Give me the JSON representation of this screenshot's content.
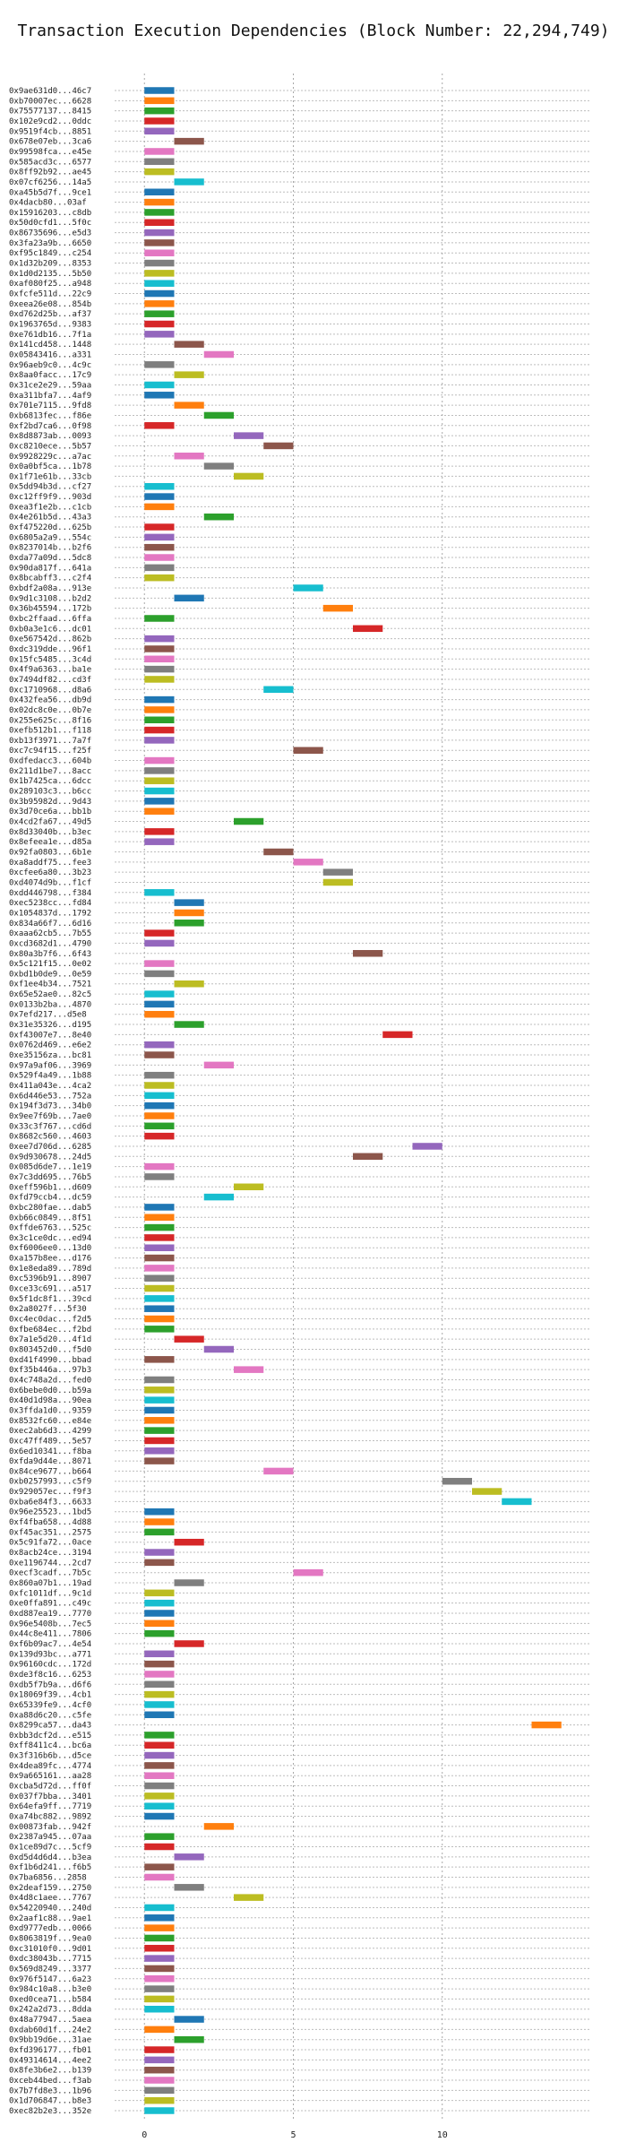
{
  "chart_data": {
    "type": "bar",
    "title": "Transaction Execution Dependencies (Block Number: 22,294,749)",
    "xlabel": "",
    "ylabel": "",
    "xlim": [
      -1,
      15
    ],
    "x_ticks": [
      0,
      5,
      10
    ],
    "grid": true,
    "bar_length": 1,
    "palette": [
      "#1f77b4",
      "#ff7f0e",
      "#2ca02c",
      "#d62728",
      "#9467bd",
      "#8c564b",
      "#e377c2",
      "#7f7f7f",
      "#bcbd22",
      "#17becf"
    ],
    "rows": [
      {
        "label": "0x9ae631d0...46c7",
        "start": 0
      },
      {
        "label": "0xb70007ec...6628",
        "start": 0
      },
      {
        "label": "0x75577137...8415",
        "start": 0
      },
      {
        "label": "0x102e9cd2...0ddc",
        "start": 0
      },
      {
        "label": "0x9519f4cb...8851",
        "start": 0
      },
      {
        "label": "0x678e07eb...3ca6",
        "start": 1
      },
      {
        "label": "0x99598fca...e45e",
        "start": 0
      },
      {
        "label": "0x585acd3c...6577",
        "start": 0
      },
      {
        "label": "0x8ff92b92...ae45",
        "start": 0
      },
      {
        "label": "0x07cf6256...14a5",
        "start": 1
      },
      {
        "label": "0xa45b5d7f...9ce1",
        "start": 0
      },
      {
        "label": "0x4dacb80...03af",
        "start": 0
      },
      {
        "label": "0x15916203...c8db",
        "start": 0
      },
      {
        "label": "0x50d0cfd1...5f0c",
        "start": 0
      },
      {
        "label": "0x86735696...e5d3",
        "start": 0
      },
      {
        "label": "0x3fa23a9b...6650",
        "start": 0
      },
      {
        "label": "0xf95c1849...c254",
        "start": 0
      },
      {
        "label": "0x1d32b209...8353",
        "start": 0
      },
      {
        "label": "0x1d0d2135...5b50",
        "start": 0
      },
      {
        "label": "0xaf080f25...a948",
        "start": 0
      },
      {
        "label": "0xfcfe511d...22c9",
        "start": 0
      },
      {
        "label": "0xeea26e08...854b",
        "start": 0
      },
      {
        "label": "0xd762d25b...af37",
        "start": 0
      },
      {
        "label": "0x1963765d...9383",
        "start": 0
      },
      {
        "label": "0xe761db16...7f1a",
        "start": 0
      },
      {
        "label": "0x141cd458...1448",
        "start": 1
      },
      {
        "label": "0x05843416...a331",
        "start": 2
      },
      {
        "label": "0x96aeb9c0...4c9c",
        "start": 0
      },
      {
        "label": "0x8aa0facc...17c9",
        "start": 1
      },
      {
        "label": "0x31ce2e29...59aa",
        "start": 0
      },
      {
        "label": "0xa311bfa7...4af9",
        "start": 0
      },
      {
        "label": "0x701e7115...9fd8",
        "start": 1
      },
      {
        "label": "0xb6813fec...f86e",
        "start": 2
      },
      {
        "label": "0xf2bd7ca6...0f98",
        "start": 0
      },
      {
        "label": "0x8d8873ab...0093",
        "start": 3
      },
      {
        "label": "0xc8210ece...5b57",
        "start": 4
      },
      {
        "label": "0x9928229c...a7ac",
        "start": 1
      },
      {
        "label": "0x0a0bf5ca...1b78",
        "start": 2
      },
      {
        "label": "0x1f71e61b...33cb",
        "start": 3
      },
      {
        "label": "0x5dd94b3d...cf27",
        "start": 0
      },
      {
        "label": "0xc12ff9f9...903d",
        "start": 0
      },
      {
        "label": "0xea3f1e2b...c1cb",
        "start": 0
      },
      {
        "label": "0x4e261b5d...43a3",
        "start": 2
      },
      {
        "label": "0xf475220d...625b",
        "start": 0
      },
      {
        "label": "0x6805a2a9...554c",
        "start": 0
      },
      {
        "label": "0x8237014b...b2f6",
        "start": 0
      },
      {
        "label": "0xda77a09d...5dc8",
        "start": 0
      },
      {
        "label": "0x90da817f...641a",
        "start": 0
      },
      {
        "label": "0x8bcabff3...c2f4",
        "start": 0
      },
      {
        "label": "0xbdf2a08a...913e",
        "start": 5
      },
      {
        "label": "0x9d1c3108...b2d2",
        "start": 1
      },
      {
        "label": "0x36b45594...172b",
        "start": 6
      },
      {
        "label": "0xbc2ffaad...6ffa",
        "start": 0
      },
      {
        "label": "0xb0a3e1c6...dc01",
        "start": 7
      },
      {
        "label": "0xe567542d...862b",
        "start": 0
      },
      {
        "label": "0xdc319dde...96f1",
        "start": 0
      },
      {
        "label": "0x15fc5485...3c4d",
        "start": 0
      },
      {
        "label": "0x4f9a6363...ba1e",
        "start": 0
      },
      {
        "label": "0x7494df82...cd3f",
        "start": 0
      },
      {
        "label": "0xc1710968...d8a6",
        "start": 4
      },
      {
        "label": "0x432fea56...db9d",
        "start": 0
      },
      {
        "label": "0x02dc8c0e...0b7e",
        "start": 0
      },
      {
        "label": "0x255e625c...8f16",
        "start": 0
      },
      {
        "label": "0xefb512b1...f118",
        "start": 0
      },
      {
        "label": "0xb13f3971...7a7f",
        "start": 0
      },
      {
        "label": "0xc7c94f15...f25f",
        "start": 5
      },
      {
        "label": "0xdfedacc3...604b",
        "start": 0
      },
      {
        "label": "0x211d1be7...8acc",
        "start": 0
      },
      {
        "label": "0x1b7425ca...6dcc",
        "start": 0
      },
      {
        "label": "0x289103c3...b6cc",
        "start": 0
      },
      {
        "label": "0x3b95982d...9d43",
        "start": 0
      },
      {
        "label": "0x3d70ce6a...bb1b",
        "start": 0
      },
      {
        "label": "0x4cd2fa67...49d5",
        "start": 3
      },
      {
        "label": "0x8d33040b...b3ec",
        "start": 0
      },
      {
        "label": "0x8efeea1e...d85a",
        "start": 0
      },
      {
        "label": "0x92fa0803...6b1e",
        "start": 4
      },
      {
        "label": "0xa8addf75...fee3",
        "start": 5
      },
      {
        "label": "0xcfee6a80...3b23",
        "start": 6
      },
      {
        "label": "0xd4074d9b...f1cf",
        "start": 6
      },
      {
        "label": "0xdd446798...f384",
        "start": 0
      },
      {
        "label": "0xec5238cc...fd84",
        "start": 1
      },
      {
        "label": "0x1054837d...1792",
        "start": 1
      },
      {
        "label": "0x834a66f7...6d16",
        "start": 1
      },
      {
        "label": "0xaaa62cb5...7b55",
        "start": 0
      },
      {
        "label": "0xcd3682d1...4790",
        "start": 0
      },
      {
        "label": "0x80a3b7f6...6f43",
        "start": 7
      },
      {
        "label": "0x5c121f15...0e02",
        "start": 0
      },
      {
        "label": "0xbd1b0de9...0e59",
        "start": 0
      },
      {
        "label": "0xf1ee4b34...7521",
        "start": 1
      },
      {
        "label": "0x65e52ae0...82c5",
        "start": 0
      },
      {
        "label": "0x0133b2ba...4870",
        "start": 0
      },
      {
        "label": "0x7efd217...d5e8",
        "start": 0
      },
      {
        "label": "0x31e35326...d195",
        "start": 1
      },
      {
        "label": "0xf43007e7...8e40",
        "start": 8
      },
      {
        "label": "0x0762d469...e6e2",
        "start": 0
      },
      {
        "label": "0xe35156za...bc81",
        "start": 0
      },
      {
        "label": "0x97a9af06...3969",
        "start": 2
      },
      {
        "label": "0x529f4a49...1b88",
        "start": 0
      },
      {
        "label": "0x411a043e...4ca2",
        "start": 0
      },
      {
        "label": "0x6d446e53...752a",
        "start": 0
      },
      {
        "label": "0x194f3d73...34b0",
        "start": 0
      },
      {
        "label": "0x9ee7f69b...7ae0",
        "start": 0
      },
      {
        "label": "0x33c3f767...cd6d",
        "start": 0
      },
      {
        "label": "0x8682c560...4603",
        "start": 0
      },
      {
        "label": "0xee7d706d...6285",
        "start": 9
      },
      {
        "label": "0x9d930678...24d5",
        "start": 7
      },
      {
        "label": "0x085d6de7...1e19",
        "start": 0
      },
      {
        "label": "0x7c3dd695...76b5",
        "start": 0
      },
      {
        "label": "0xeff596b1...d609",
        "start": 3
      },
      {
        "label": "0xfd79ccb4...dc59",
        "start": 2
      },
      {
        "label": "0xbc280fae...dab5",
        "start": 0
      },
      {
        "label": "0xb66c0849...8f51",
        "start": 0
      },
      {
        "label": "0xffde6763...525c",
        "start": 0
      },
      {
        "label": "0x3c1ce0dc...ed94",
        "start": 0
      },
      {
        "label": "0xf6006ee0...13d0",
        "start": 0
      },
      {
        "label": "0xa157b8ee...d176",
        "start": 0
      },
      {
        "label": "0x1e8eda89...789d",
        "start": 0
      },
      {
        "label": "0xc5396b91...8907",
        "start": 0
      },
      {
        "label": "0xce33c691...a517",
        "start": 0
      },
      {
        "label": "0x5f1dc8f1...39cd",
        "start": 0
      },
      {
        "label": "0x2a8027f...5f30",
        "start": 0
      },
      {
        "label": "0xc4ec0dac...f2d5",
        "start": 0
      },
      {
        "label": "0xfbe684ec...f2bd",
        "start": 0
      },
      {
        "label": "0x7a1e5d20...4f1d",
        "start": 1
      },
      {
        "label": "0x803452d0...f5d0",
        "start": 2
      },
      {
        "label": "0xd41f4990...bbad",
        "start": 0
      },
      {
        "label": "0xf35b446a...97b3",
        "start": 3
      },
      {
        "label": "0x4c748a2d...fed0",
        "start": 0
      },
      {
        "label": "0x6bebe0d0...b59a",
        "start": 0
      },
      {
        "label": "0x40d1d98a...90ea",
        "start": 0
      },
      {
        "label": "0x3ffda1d0...9359",
        "start": 0
      },
      {
        "label": "0x8532fc60...e84e",
        "start": 0
      },
      {
        "label": "0xec2ab6d3...4299",
        "start": 0
      },
      {
        "label": "0xc47ff489...5e57",
        "start": 0
      },
      {
        "label": "0x6ed10341...f8ba",
        "start": 0
      },
      {
        "label": "0xfda9d44e...8071",
        "start": 0
      },
      {
        "label": "0x84ce9677...b664",
        "start": 4
      },
      {
        "label": "0xb0257993...c5f9",
        "start": 10
      },
      {
        "label": "0x929057ec...f9f3",
        "start": 11
      },
      {
        "label": "0xba6e84f3...6633",
        "start": 12
      },
      {
        "label": "0x96e25523...1bd5",
        "start": 0
      },
      {
        "label": "0xf4fba658...4d88",
        "start": 0
      },
      {
        "label": "0xf45ac351...2575",
        "start": 0
      },
      {
        "label": "0x5c91fa72...0ace",
        "start": 1
      },
      {
        "label": "0x8acb24ce...3194",
        "start": 0
      },
      {
        "label": "0xe1196744...2cd7",
        "start": 0
      },
      {
        "label": "0xecf3cadf...7b5c",
        "start": 5
      },
      {
        "label": "0x860a07b1...19ad",
        "start": 1
      },
      {
        "label": "0xfc1011df...9c1d",
        "start": 0
      },
      {
        "label": "0xe0ffa891...c49c",
        "start": 0
      },
      {
        "label": "0xd887ea19...7770",
        "start": 0
      },
      {
        "label": "0x96e5408b...7ec5",
        "start": 0
      },
      {
        "label": "0x44c8e411...7806",
        "start": 0
      },
      {
        "label": "0xf6b09ac7...4e54",
        "start": 1
      },
      {
        "label": "0x139d93bc...a771",
        "start": 0
      },
      {
        "label": "0x96160cdc...172d",
        "start": 0
      },
      {
        "label": "0xde3f8c16...6253",
        "start": 0
      },
      {
        "label": "0xdb5f7b9a...d6f6",
        "start": 0
      },
      {
        "label": "0x18069f39...4cb1",
        "start": 0
      },
      {
        "label": "0x65339fe9...4cf0",
        "start": 0
      },
      {
        "label": "0xa88d6c20...c5fe",
        "start": 0
      },
      {
        "label": "0x8299ca57...da43",
        "start": 13
      },
      {
        "label": "0xbb3dcf2d...e515",
        "start": 0
      },
      {
        "label": "0xff8411c4...bc6a",
        "start": 0
      },
      {
        "label": "0x3f316b6b...d5ce",
        "start": 0
      },
      {
        "label": "0x4dea89fc...4774",
        "start": 0
      },
      {
        "label": "0x9a665161...aa28",
        "start": 0
      },
      {
        "label": "0xcba5d72d...ff0f",
        "start": 0
      },
      {
        "label": "0x037f7bba...3401",
        "start": 0
      },
      {
        "label": "0x64efa9ff...7719",
        "start": 0
      },
      {
        "label": "0xa74bc882...9892",
        "start": 0
      },
      {
        "label": "0x00873fab...942f",
        "start": 2
      },
      {
        "label": "0x2387a945...07aa",
        "start": 0
      },
      {
        "label": "0x1ce89d7c...5cf9",
        "start": 0
      },
      {
        "label": "0xd5d4d6d4...b3ea",
        "start": 1
      },
      {
        "label": "0xf1b6d241...f6b5",
        "start": 0
      },
      {
        "label": "0x7ba6856...2858",
        "start": 0
      },
      {
        "label": "0x2deaf159...2750",
        "start": 1
      },
      {
        "label": "0x4d8c1aee...7767",
        "start": 3
      },
      {
        "label": "0x54220940...240d",
        "start": 0
      },
      {
        "label": "0x2aaf1c88...9ae1",
        "start": 0
      },
      {
        "label": "0xd9777edb...0066",
        "start": 0
      },
      {
        "label": "0x8063819f...9ea0",
        "start": 0
      },
      {
        "label": "0xc31010f0...9d01",
        "start": 0
      },
      {
        "label": "0xdc38043b...7715",
        "start": 0
      },
      {
        "label": "0x569d8249...3377",
        "start": 0
      },
      {
        "label": "0x976f5147...6a23",
        "start": 0
      },
      {
        "label": "0x984c10a8...b3e0",
        "start": 0
      },
      {
        "label": "0xed0cea71...b584",
        "start": 0
      },
      {
        "label": "0x242a2d73...8dda",
        "start": 0
      },
      {
        "label": "0x48a77947...5aea",
        "start": 1
      },
      {
        "label": "0xdab60d1f...24e2",
        "start": 0
      },
      {
        "label": "0x9bb19d6e...31ae",
        "start": 1
      },
      {
        "label": "0xfd396177...fb01",
        "start": 0
      },
      {
        "label": "0x49314614...4ee2",
        "start": 0
      },
      {
        "label": "0x8fe3b6e2...b139",
        "start": 0
      },
      {
        "label": "0xceb44bed...f3ab",
        "start": 0
      },
      {
        "label": "0x7b7fd8e3...1b96",
        "start": 0
      },
      {
        "label": "0x1d706847...b8e3",
        "start": 0
      },
      {
        "label": "0xec82b2e3...352e",
        "start": 0
      }
    ]
  }
}
